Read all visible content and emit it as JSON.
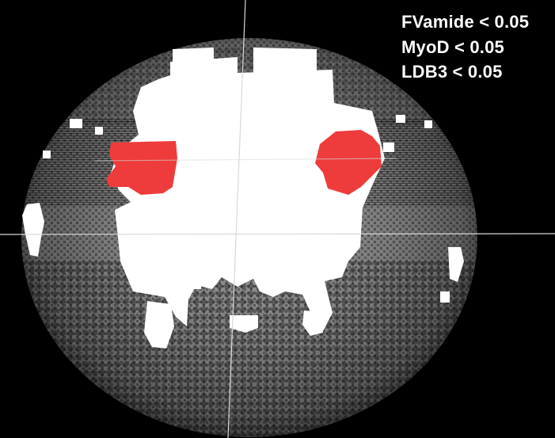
{
  "legend": [
    {
      "text": "FVamide < 0.05"
    },
    {
      "text": "MyoD < 0.05"
    },
    {
      "text": "LDB3 < 0.05"
    }
  ],
  "colors": {
    "background": "#000000",
    "volume_gray": "#8a8a8a",
    "significant_white": "#ffffff",
    "overlap_red": "#ee3b3b",
    "crosshair": "#cfcfcf"
  }
}
